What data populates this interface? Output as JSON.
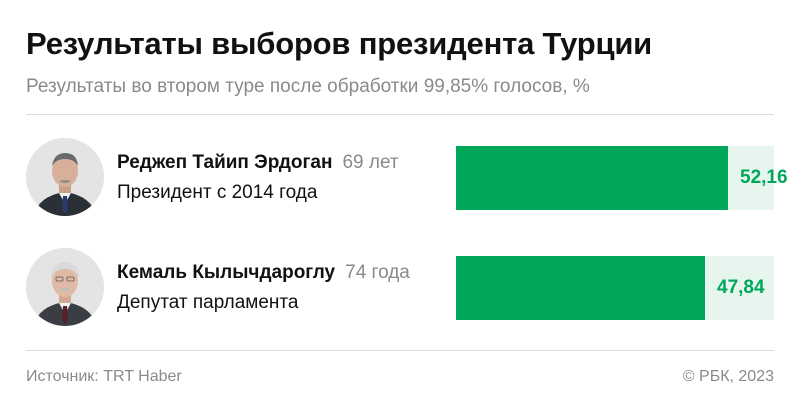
{
  "title": "Результаты выборов президента Турции",
  "subtitle": "Результаты во втором туре после обработки 99,85% голосов, %",
  "colors": {
    "bar": "#00a65a",
    "track": "#e6f6ee",
    "value_text": "#00a65a"
  },
  "chart_data": {
    "type": "bar",
    "orientation": "horizontal",
    "categories": [
      "Реджеп Тайип Эрдоган",
      "Кемаль Кылычдароглу"
    ],
    "values": [
      52.16,
      47.84
    ],
    "value_labels": [
      "52,16",
      "47,84"
    ],
    "title": "Результаты выборов президента Турции",
    "subtitle": "Результаты во втором туре после обработки 99,85% голосов, %",
    "xlim": [
      0,
      100
    ],
    "grid": false
  },
  "candidates": [
    {
      "name": "Реджеп Тайип Эрдоган",
      "age": "69 лет",
      "role": "Президент с 2014 года",
      "value_label": "52,16",
      "value": 52.16,
      "avatar_icon": "portrait-erdogan-icon"
    },
    {
      "name": "Кемаль Кылычдароглу",
      "age": "74 года",
      "role": "Депутат парламента",
      "value_label": "47,84",
      "value": 47.84,
      "avatar_icon": "portrait-kilicdaroglu-icon"
    }
  ],
  "footer": {
    "source": "Источник: TRT Haber",
    "copyright": "© РБК, 2023"
  }
}
